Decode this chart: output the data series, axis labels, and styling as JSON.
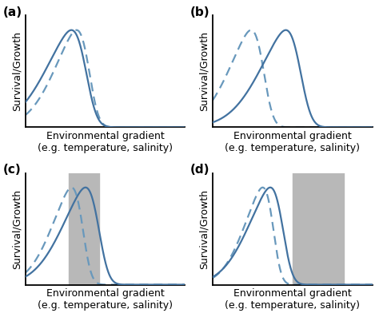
{
  "line_color": "#4272a0",
  "line_color_dashed": "#6898bc",
  "line_width": 1.6,
  "bg_color": "#ffffff",
  "gray_color": "#b8b8b8",
  "gray_alpha": 1.0,
  "panel_labels": [
    "(a)",
    "(b)",
    "(c)",
    "(d)"
  ],
  "label_fontsize": 11,
  "ylabel": "Survival/Growth",
  "xlabel_line1": "Environmental gradient",
  "xlabel_line2": "(e.g. temperature, salinity)",
  "xlabel_fontsize": 9,
  "ylabel_fontsize": 9,
  "panels": {
    "a": {
      "solid_mu": 0.38,
      "solid_sigma": 0.22,
      "solid_skew": 4.0,
      "dashed_mu": 0.4,
      "dashed_sigma": 0.19,
      "dashed_skew": 4.0,
      "gray": null
    },
    "b": {
      "solid_mu": 0.55,
      "solid_sigma": 0.22,
      "solid_skew": 4.0,
      "dashed_mu": 0.32,
      "dashed_sigma": 0.19,
      "dashed_skew": 4.0,
      "gray": null
    },
    "c": {
      "solid_mu": 0.46,
      "solid_sigma": 0.2,
      "solid_skew": 4.0,
      "dashed_mu": 0.36,
      "dashed_sigma": 0.17,
      "dashed_skew": 4.0,
      "gray": [
        0.27,
        0.46
      ]
    },
    "d": {
      "solid_mu": 0.44,
      "solid_sigma": 0.19,
      "solid_skew": 4.0,
      "dashed_mu": 0.38,
      "dashed_sigma": 0.16,
      "dashed_skew": 4.0,
      "gray": [
        0.5,
        0.82
      ]
    }
  }
}
